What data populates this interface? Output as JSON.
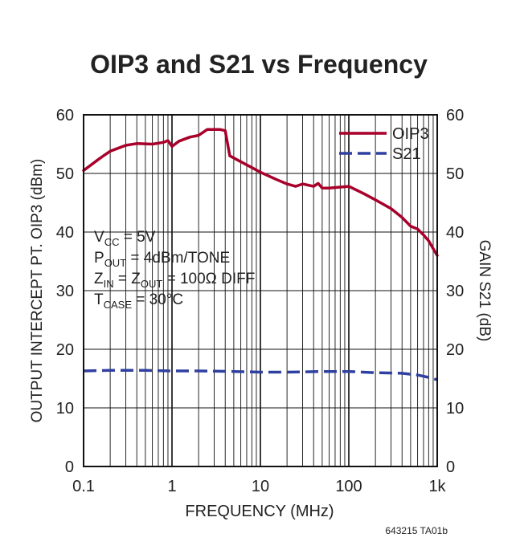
{
  "chart_data": {
    "type": "line",
    "title": "OIP3 and S21 vs Frequency",
    "xlabel": "FREQUENCY (MHz)",
    "ylabel_left": "OUTPUT INTERCEPT PT. OIP3 (dBm)",
    "ylabel_right": "GAIN S21 (dB)",
    "x_scale": "log",
    "xlim": [
      0.1,
      1000
    ],
    "ylim": [
      0,
      60
    ],
    "x_ticks": [
      "0.1",
      "1",
      "10",
      "100",
      "1k"
    ],
    "y_ticks": [
      "0",
      "10",
      "20",
      "30",
      "40",
      "50",
      "60"
    ],
    "grid": true,
    "legend_position": "top-right",
    "series": [
      {
        "name": "OIP3",
        "color": "#a8002a",
        "style": "solid",
        "x": [
          0.1,
          0.15,
          0.2,
          0.3,
          0.4,
          0.6,
          0.8,
          0.9,
          1.0,
          1.2,
          1.6,
          2,
          2.5,
          3,
          3.5,
          4,
          4.5,
          6,
          8,
          10,
          15,
          20,
          25,
          30,
          40,
          45,
          50,
          60,
          100,
          150,
          200,
          300,
          400,
          500,
          600,
          700,
          800,
          1000
        ],
        "y": [
          50.5,
          52.5,
          53.8,
          54.8,
          55.1,
          55.0,
          55.3,
          55.6,
          54.6,
          55.5,
          56.2,
          56.5,
          57.5,
          57.5,
          57.5,
          57.3,
          53.0,
          52.0,
          51.0,
          50.2,
          49.0,
          48.2,
          47.8,
          48.2,
          47.8,
          48.3,
          47.5,
          47.5,
          47.8,
          46.5,
          45.5,
          44.0,
          42.5,
          41.0,
          40.5,
          39.5,
          38.5,
          36.0
        ]
      },
      {
        "name": "S21",
        "color": "#3040a0",
        "style": "dashed",
        "x": [
          0.1,
          0.2,
          0.5,
          1,
          2,
          5,
          10,
          20,
          50,
          100,
          200,
          400,
          600,
          800,
          1000
        ],
        "y": [
          16.3,
          16.4,
          16.4,
          16.3,
          16.3,
          16.2,
          16.1,
          16.1,
          16.2,
          16.2,
          16.0,
          15.9,
          15.6,
          15.2,
          14.8
        ]
      }
    ],
    "annotations": {
      "vcc_main": "V",
      "vcc_sub": "CC",
      "vcc_rest": " = 5V",
      "pout_main": "P",
      "pout_sub": "OUT",
      "pout_rest": " = 4dBm/TONE",
      "z_main": "Z",
      "zin_sub": "IN",
      "z_mid": " = Z",
      "zout_sub": "OUT",
      "z_rest": " = 100Ω DIFF",
      "tc_main": "T",
      "tc_sub": "CASE",
      "tc_rest": " = 30°C"
    },
    "figure_id": "643215 TA01b"
  }
}
